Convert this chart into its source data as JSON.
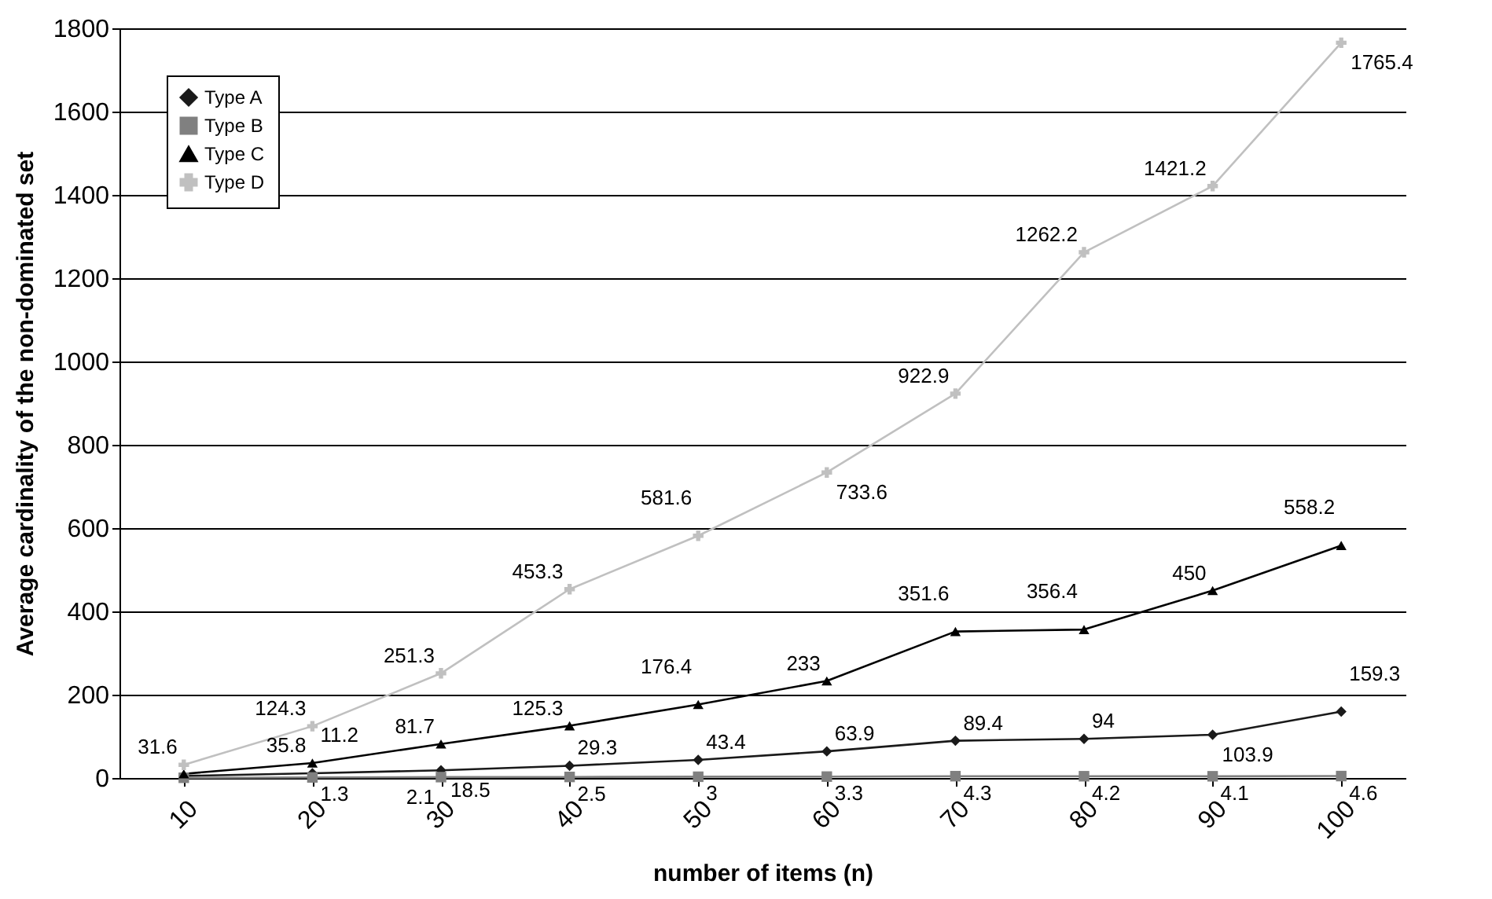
{
  "chart_data": {
    "type": "line",
    "xlabel": "number of items (n)",
    "ylabel": "Average cardinality of the non-dominated set",
    "categories": [
      "10",
      "20",
      "30",
      "40",
      "50",
      "60",
      "70",
      "80",
      "90",
      "100"
    ],
    "ylim": [
      0,
      1800
    ],
    "yticks": [
      0,
      200,
      400,
      600,
      800,
      1000,
      1200,
      1400,
      1600,
      1800
    ],
    "grid": "y",
    "legend": "top left",
    "series": [
      {
        "name": "Type A",
        "color": "#1a1a1a",
        "marker": "diamond",
        "values": [
          5,
          11.2,
          18.5,
          29.3,
          43.4,
          63.9,
          89.4,
          94,
          103.9,
          159.3
        ],
        "value_labels": [
          null,
          "11.2",
          "18.5",
          "29.3",
          "43.4",
          "63.9",
          "89.4",
          "94",
          "103.9",
          "159.3"
        ]
      },
      {
        "name": "Type B",
        "color": "#808080",
        "marker": "square",
        "values": [
          0.5,
          1.3,
          2.1,
          2.5,
          3,
          3.3,
          4.3,
          4.2,
          4.1,
          4.6
        ],
        "value_labels": [
          null,
          "1.3",
          "2.1",
          "2.5",
          "3",
          "3.3",
          "4.3",
          "4.2",
          "4.1",
          "4.6"
        ]
      },
      {
        "name": "Type C",
        "color": "#000000",
        "marker": "triangle",
        "values": [
          10,
          35.8,
          81.7,
          125.3,
          176.4,
          233,
          351.6,
          356.4,
          450,
          558.2
        ],
        "value_labels": [
          null,
          "35.8",
          "81.7",
          "125.3",
          "176.4",
          "233",
          "351.6",
          "356.4",
          "450",
          "558.2"
        ]
      },
      {
        "name": "Type D",
        "color": "#c0c0c0",
        "marker": "cross",
        "values": [
          31.6,
          124.3,
          251.3,
          453.3,
          581.6,
          733.6,
          922.9,
          1262.2,
          1421.2,
          1765.4
        ],
        "value_labels": [
          "31.6",
          "124.3",
          "251.3",
          "453.3",
          "581.6",
          "733.6",
          "922.9",
          "1262.2",
          "1421.2",
          "1765.4"
        ]
      }
    ]
  }
}
